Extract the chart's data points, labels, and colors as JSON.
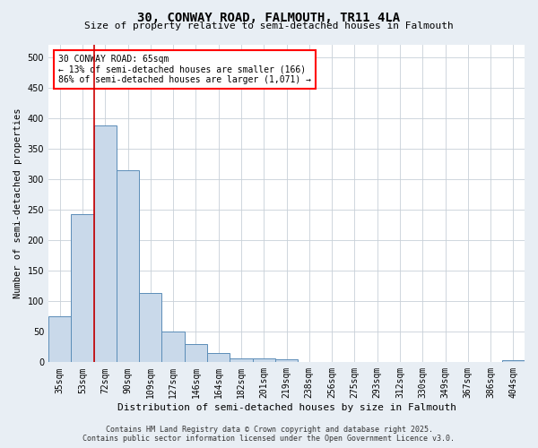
{
  "title_line1": "30, CONWAY ROAD, FALMOUTH, TR11 4LA",
  "title_line2": "Size of property relative to semi-detached houses in Falmouth",
  "xlabel": "Distribution of semi-detached houses by size in Falmouth",
  "ylabel": "Number of semi-detached properties",
  "categories": [
    "35sqm",
    "53sqm",
    "72sqm",
    "90sqm",
    "109sqm",
    "127sqm",
    "146sqm",
    "164sqm",
    "182sqm",
    "201sqm",
    "219sqm",
    "238sqm",
    "256sqm",
    "275sqm",
    "293sqm",
    "312sqm",
    "330sqm",
    "349sqm",
    "367sqm",
    "386sqm",
    "404sqm"
  ],
  "values": [
    75,
    243,
    388,
    314,
    114,
    50,
    30,
    15,
    6,
    7,
    5,
    1,
    1,
    1,
    0,
    0,
    1,
    0,
    0,
    0,
    4
  ],
  "bar_color": "#c9d9ea",
  "bar_edge_color": "#5b8db8",
  "vline_color": "#cc0000",
  "vline_x": 1.5,
  "annotation_text": "30 CONWAY ROAD: 65sqm\n← 13% of semi-detached houses are smaller (166)\n86% of semi-detached houses are larger (1,071) →",
  "ylim": [
    0,
    520
  ],
  "yticks": [
    0,
    50,
    100,
    150,
    200,
    250,
    300,
    350,
    400,
    450,
    500
  ],
  "footer_line1": "Contains HM Land Registry data © Crown copyright and database right 2025.",
  "footer_line2": "Contains public sector information licensed under the Open Government Licence v3.0.",
  "bg_color": "#e8eef4",
  "plot_bg_color": "#ffffff",
  "grid_color": "#c8d0d8",
  "title1_fontsize": 10,
  "title2_fontsize": 8,
  "ylabel_fontsize": 7.5,
  "xlabel_fontsize": 8,
  "tick_fontsize": 7,
  "footer_fontsize": 6,
  "ann_fontsize": 7
}
